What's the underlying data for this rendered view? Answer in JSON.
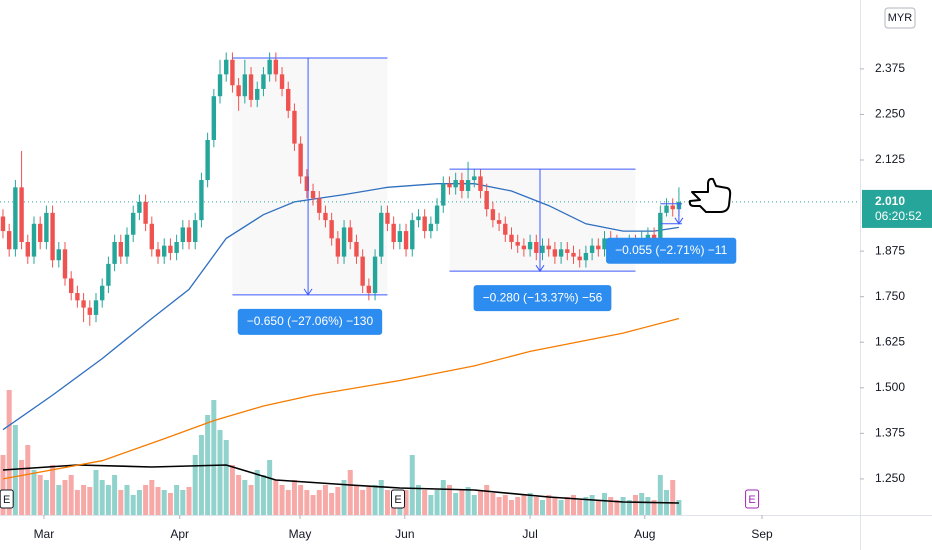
{
  "chart_data": {
    "type": "candlestick",
    "currency": "MYR",
    "up_color": "#26a69a",
    "down_color": "#ef5350",
    "volume_up_color": "rgba(38,166,154,0.5)",
    "volume_down_color": "rgba(239,83,80,0.5)",
    "open": [
      1.97,
      1.93,
      1.88,
      2.05,
      1.9,
      1.86,
      1.95,
      1.9,
      1.98,
      1.85,
      1.88,
      1.8,
      1.76,
      1.74,
      1.72,
      1.7,
      1.74,
      1.78,
      1.84,
      1.9,
      1.86,
      1.92,
      1.98,
      2.01,
      1.95,
      1.88,
      1.86,
      1.89,
      1.87,
      1.9,
      1.94,
      1.9,
      1.96,
      2.07,
      2.18,
      2.3,
      2.36,
      2.4,
      2.33,
      2.3,
      2.36,
      2.29,
      2.32,
      2.36,
      2.4,
      2.36,
      2.32,
      2.26,
      2.17,
      2.08,
      2.04,
      2.02,
      1.98,
      1.96,
      1.91,
      1.86,
      1.94,
      1.9,
      1.86,
      1.78,
      1.76,
      1.86,
      1.98,
      1.95,
      1.9,
      1.93,
      1.88,
      1.96,
      1.97,
      1.93,
      1.95,
      2.0,
      2.06,
      2.05,
      2.07,
      2.04,
      2.07,
      2.08,
      2.04,
      1.99,
      1.96,
      1.95,
      1.92,
      1.9,
      1.89,
      1.88,
      1.9,
      1.87,
      1.89,
      1.88,
      1.86,
      1.88,
      1.87,
      1.86,
      1.85,
      1.87,
      1.89,
      1.88,
      1.91,
      1.9,
      1.88,
      1.89,
      1.9,
      1.89,
      1.91,
      1.92,
      1.88,
      1.98,
      2.0,
      1.99
    ],
    "high": [
      1.99,
      1.95,
      2.07,
      2.15,
      1.92,
      1.97,
      1.97,
      2.0,
      2.0,
      1.9,
      1.9,
      1.82,
      1.78,
      1.76,
      1.74,
      1.76,
      1.8,
      1.86,
      1.92,
      1.92,
      1.94,
      2.0,
      2.03,
      2.03,
      1.97,
      1.9,
      1.91,
      1.91,
      1.92,
      1.96,
      1.96,
      1.98,
      2.09,
      2.2,
      2.32,
      2.4,
      2.42,
      2.42,
      2.35,
      2.4,
      2.38,
      2.34,
      2.38,
      2.42,
      2.42,
      2.38,
      2.34,
      2.28,
      2.19,
      2.1,
      2.06,
      2.04,
      2.0,
      1.98,
      1.93,
      1.96,
      1.96,
      1.92,
      1.88,
      1.8,
      1.88,
      2.0,
      2.0,
      1.97,
      1.95,
      1.95,
      1.98,
      1.99,
      1.99,
      1.97,
      2.02,
      2.08,
      2.08,
      2.09,
      2.09,
      2.12,
      2.1,
      2.1,
      2.06,
      2.01,
      1.98,
      1.97,
      1.94,
      1.92,
      1.91,
      1.92,
      1.92,
      1.91,
      1.91,
      1.9,
      1.9,
      1.9,
      1.89,
      1.88,
      1.89,
      1.91,
      1.91,
      1.93,
      1.93,
      1.92,
      1.91,
      1.92,
      1.92,
      1.93,
      1.94,
      1.94,
      2.0,
      2.02,
      2.02,
      2.05
    ],
    "low": [
      1.91,
      1.86,
      1.86,
      1.88,
      1.84,
      1.84,
      1.88,
      1.88,
      1.83,
      1.83,
      1.78,
      1.74,
      1.72,
      1.68,
      1.67,
      1.68,
      1.72,
      1.76,
      1.82,
      1.84,
      1.84,
      1.9,
      1.96,
      1.93,
      1.86,
      1.84,
      1.84,
      1.85,
      1.85,
      1.88,
      1.88,
      1.88,
      1.94,
      2.05,
      2.16,
      2.28,
      2.34,
      2.31,
      2.26,
      2.28,
      2.27,
      2.27,
      2.3,
      2.34,
      2.34,
      2.3,
      2.24,
      2.15,
      2.06,
      2.02,
      2.0,
      1.96,
      1.94,
      1.89,
      1.84,
      1.84,
      1.88,
      1.84,
      1.76,
      1.74,
      1.74,
      1.84,
      1.93,
      1.88,
      1.88,
      1.86,
      1.86,
      1.94,
      1.91,
      1.91,
      1.93,
      1.98,
      2.03,
      2.03,
      2.02,
      2.02,
      2.05,
      2.02,
      1.97,
      1.94,
      1.93,
      1.9,
      1.88,
      1.87,
      1.86,
      1.86,
      1.85,
      1.85,
      1.86,
      1.84,
      1.84,
      1.85,
      1.84,
      1.83,
      1.83,
      1.85,
      1.86,
      1.86,
      1.88,
      1.86,
      1.86,
      1.87,
      1.87,
      1.87,
      1.89,
      1.86,
      1.86,
      1.97,
      1.97,
      1.97
    ],
    "close": [
      1.93,
      1.88,
      2.05,
      1.9,
      1.86,
      1.95,
      1.9,
      1.98,
      1.85,
      1.88,
      1.8,
      1.76,
      1.74,
      1.72,
      1.7,
      1.74,
      1.78,
      1.84,
      1.9,
      1.86,
      1.92,
      1.98,
      2.01,
      1.95,
      1.88,
      1.86,
      1.89,
      1.87,
      1.9,
      1.94,
      1.9,
      1.96,
      2.07,
      2.18,
      2.3,
      2.36,
      2.4,
      2.33,
      2.3,
      2.36,
      2.29,
      2.32,
      2.36,
      2.4,
      2.36,
      2.32,
      2.26,
      2.17,
      2.08,
      2.04,
      2.02,
      1.98,
      1.96,
      1.91,
      1.86,
      1.94,
      1.9,
      1.86,
      1.78,
      1.76,
      1.86,
      1.98,
      1.95,
      1.9,
      1.93,
      1.88,
      1.96,
      1.97,
      1.93,
      1.95,
      2.0,
      2.06,
      2.05,
      2.07,
      2.04,
      2.07,
      2.08,
      2.04,
      1.99,
      1.96,
      1.95,
      1.92,
      1.9,
      1.89,
      1.88,
      1.9,
      1.87,
      1.89,
      1.88,
      1.86,
      1.88,
      1.87,
      1.86,
      1.85,
      1.87,
      1.89,
      1.88,
      1.91,
      1.9,
      1.88,
      1.89,
      1.9,
      1.89,
      1.91,
      1.92,
      1.88,
      1.98,
      2.0,
      1.99,
      2.01
    ],
    "volume": [
      60,
      125,
      90,
      55,
      70,
      45,
      40,
      35,
      50,
      30,
      35,
      40,
      25,
      30,
      28,
      45,
      35,
      30,
      40,
      25,
      30,
      20,
      25,
      30,
      35,
      28,
      25,
      22,
      30,
      25,
      28,
      60,
      80,
      100,
      115,
      85,
      75,
      50,
      40,
      35,
      30,
      45,
      40,
      55,
      35,
      30,
      25,
      35,
      30,
      25,
      20,
      25,
      30,
      22,
      28,
      35,
      45,
      30,
      25,
      28,
      30,
      35,
      25,
      20,
      22,
      25,
      60,
      30,
      25,
      20,
      25,
      35,
      30,
      22,
      25,
      28,
      20,
      25,
      30,
      22,
      18,
      20,
      15,
      18,
      20,
      22,
      18,
      15,
      20,
      18,
      15,
      18,
      20,
      15,
      18,
      20,
      15,
      22,
      18,
      15,
      18,
      15,
      20,
      22,
      18,
      15,
      40,
      25,
      35,
      15
    ],
    "volume_ylim": [
      0,
      130
    ],
    "lines": [
      {
        "color": "#2f6fbf",
        "x": [
          0,
          8,
          16,
          24,
          30,
          36,
          42,
          47,
          55,
          62,
          70,
          76,
          82,
          88,
          94,
          100,
          105,
          109
        ],
        "values": [
          1.385,
          1.48,
          1.58,
          1.69,
          1.77,
          1.91,
          1.975,
          2.01,
          2.03,
          2.05,
          2.06,
          2.06,
          2.04,
          2.0,
          1.95,
          1.93,
          1.93,
          1.94
        ]
      },
      {
        "color": "#f57c00",
        "x": [
          0,
          16,
          26,
          34,
          42,
          50,
          64,
          76,
          85,
          100,
          109
        ],
        "values": [
          1.25,
          1.3,
          1.36,
          1.41,
          1.45,
          1.48,
          1.52,
          1.56,
          1.6,
          1.65,
          1.69
        ]
      },
      {
        "color": "#000000",
        "axis": "volume",
        "x": [
          0,
          12,
          24,
          36,
          44,
          56,
          64,
          76,
          88,
          100,
          109
        ],
        "values": [
          45,
          50,
          48,
          50,
          35,
          30,
          27,
          25,
          18,
          13,
          12
        ]
      }
    ],
    "measures": [
      {
        "label": "−0.650 (−27.06%) −130",
        "x": [
          37,
          62
        ],
        "arrow_x": 49.2,
        "y": [
          2.405,
          1.755
        ]
      },
      {
        "label": "−0.280 (−13.37%) −56",
        "x": [
          72,
          102
        ],
        "arrow_x": 86.6,
        "y": [
          2.1,
          1.82
        ]
      },
      {
        "label": "−0.055 (−2.71%) −11",
        "x": [
          106,
          109.5
        ],
        "arrow_x": 109,
        "y": [
          2.005,
          1.95
        ]
      }
    ],
    "events": [
      {
        "x": 0.6,
        "label": "E",
        "color": "#131722"
      },
      {
        "x": 63.7,
        "label": "E",
        "color": "#131722"
      },
      {
        "x": 120.8,
        "label": "E",
        "color": "#9c27b0"
      }
    ],
    "last_price": {
      "value": 2.01,
      "label": "2.010"
    },
    "countdown": "06:20:52",
    "ylim": [
      1.151,
      2.564
    ],
    "yticks": [
      {
        "value": 1.25,
        "label": "1.250"
      },
      1.375,
      {
        "value": 1.5,
        "label": "1.500"
      },
      1.625,
      {
        "value": 1.75,
        "label": "1.750"
      },
      1.875,
      2.125,
      {
        "value": 2.25,
        "label": "2.250"
      },
      2.375
    ],
    "xlim": [
      -0.48,
      138.2
    ],
    "xticks": [
      {
        "value": 6.6,
        "label": "Mar"
      },
      {
        "value": 28.5,
        "label": "Apr"
      },
      {
        "value": 47.9,
        "label": "May"
      },
      {
        "value": 64.8,
        "label": "Jun"
      },
      {
        "value": 85,
        "label": "Jul"
      },
      {
        "value": 103.5,
        "label": "Aug"
      },
      {
        "value": 122.4,
        "label": "Sep"
      }
    ],
    "grid": false
  }
}
